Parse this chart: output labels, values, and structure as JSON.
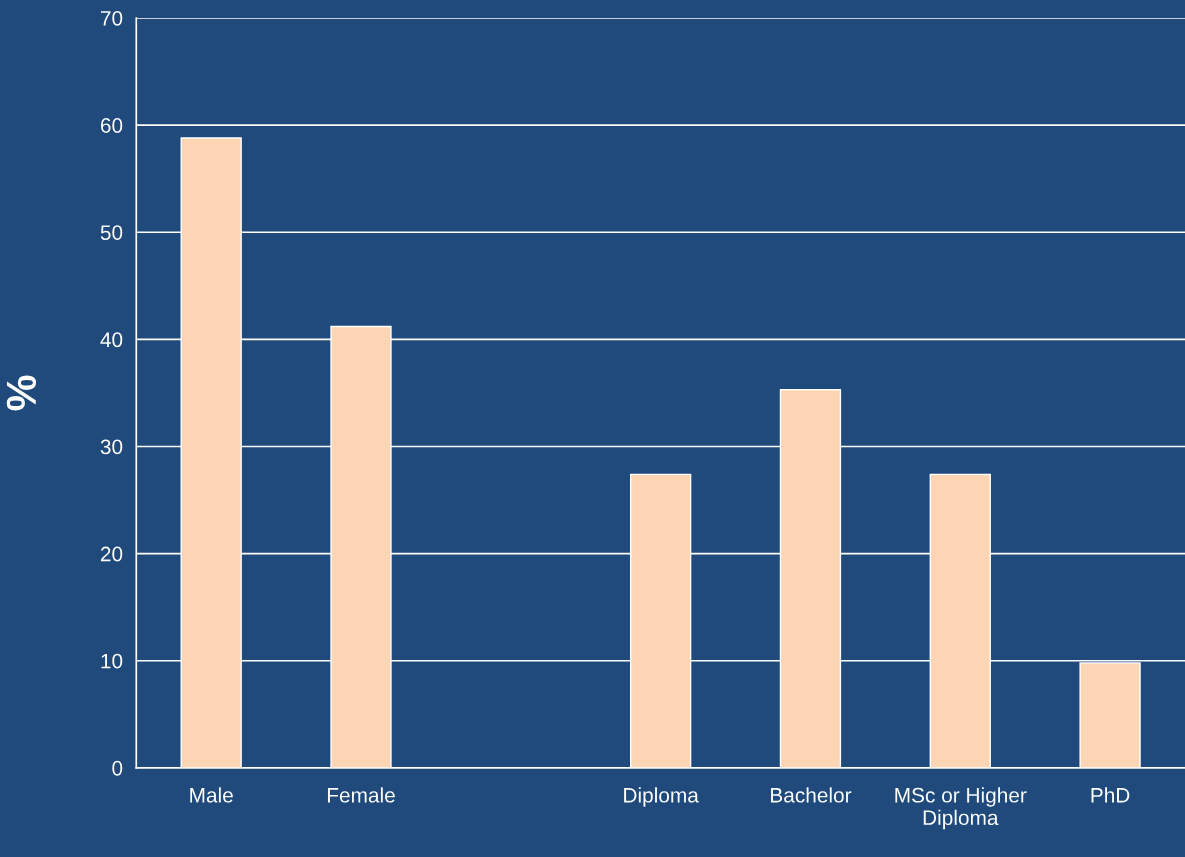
{
  "chart_data": {
    "type": "bar",
    "ylabel": "%",
    "categories": [
      "Male",
      "Female",
      null,
      "Diploma",
      "Bachelor",
      "MSc or Higher Diploma",
      "PhD"
    ],
    "values": [
      58.8,
      41.2,
      null,
      27.4,
      35.3,
      27.4,
      9.8
    ],
    "color": "#fcd5b4",
    "ylim": [
      0,
      70
    ],
    "yticks": [
      0,
      10,
      20,
      30,
      40,
      50,
      60,
      70
    ],
    "grid": "y",
    "legend": false
  }
}
